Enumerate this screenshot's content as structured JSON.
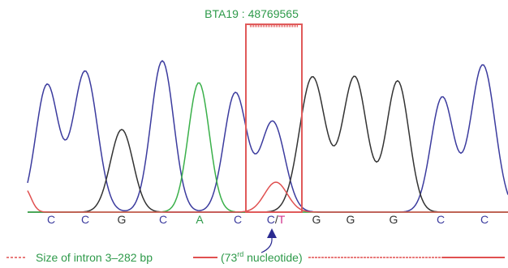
{
  "locus": "BTA19 : 48769565",
  "bases": [
    "C",
    "C",
    "G",
    "C",
    "A",
    "C",
    null,
    "G",
    "G",
    "G",
    "C",
    "C"
  ],
  "snp": {
    "major": "C",
    "separator": "/",
    "minor": "T"
  },
  "legend": {
    "intron": "Size of intron 3–282 bp",
    "nucleotide_open": "(73",
    "nucleotide_sup": "rd",
    "nucleotide_close": " nucleotide)"
  }
}
